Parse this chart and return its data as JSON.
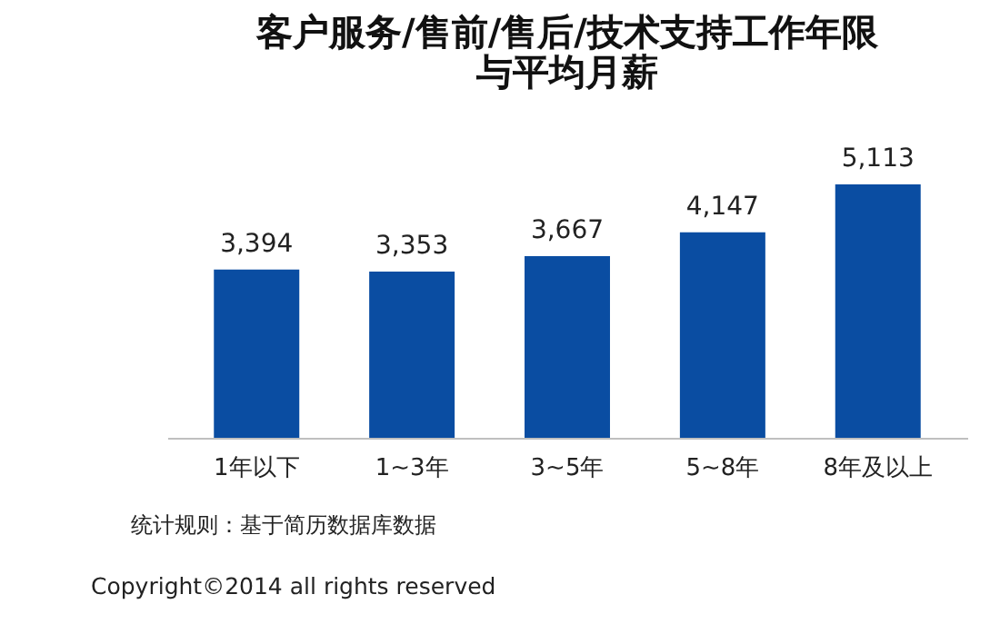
{
  "chart_data": {
    "type": "bar",
    "title": "客户服务/售前/售后/技术支持工作年限与平均月薪",
    "categories": [
      "1年以下",
      "1~3年",
      "3~5年",
      "5~8年",
      "8年及以上"
    ],
    "values": [
      3394,
      3353,
      3667,
      4147,
      5113
    ],
    "value_labels": [
      "3,394",
      "3,353",
      "3,667",
      "4,147",
      "5,113"
    ],
    "color": "#0a4da2",
    "tick_labels": "x",
    "annotations": [
      "统计规则：基于简历数据库数据",
      "Copyright©2014 all rights reserved"
    ]
  }
}
